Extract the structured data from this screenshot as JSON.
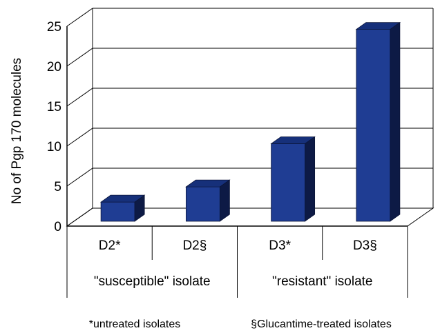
{
  "chart_data": {
    "type": "bar",
    "ylabel": "No of Pgp 170 molecules",
    "ylim": [
      0,
      25
    ],
    "yticks": [
      "0",
      "5",
      "10",
      "15",
      "20",
      "25"
    ],
    "grid": true,
    "categories": [
      "D2*",
      "D2§",
      "D3*",
      "D3§"
    ],
    "values": [
      2.4,
      4.3,
      9.7,
      24.0
    ],
    "groups": [
      {
        "label": "\"susceptible\" isolate",
        "categories": [
          "D2*",
          "D2§"
        ]
      },
      {
        "label": "\"resistant\" isolate",
        "categories": [
          "D3*",
          "D3§"
        ]
      }
    ],
    "footnotes": [
      "*untreated isolates",
      "§Glucantime-treated isolates"
    ],
    "colors": {
      "front": "#1f3d93",
      "side": "#0d1a45",
      "top": "#16307a",
      "edge": "#0b1538",
      "grid": "#000000"
    }
  }
}
